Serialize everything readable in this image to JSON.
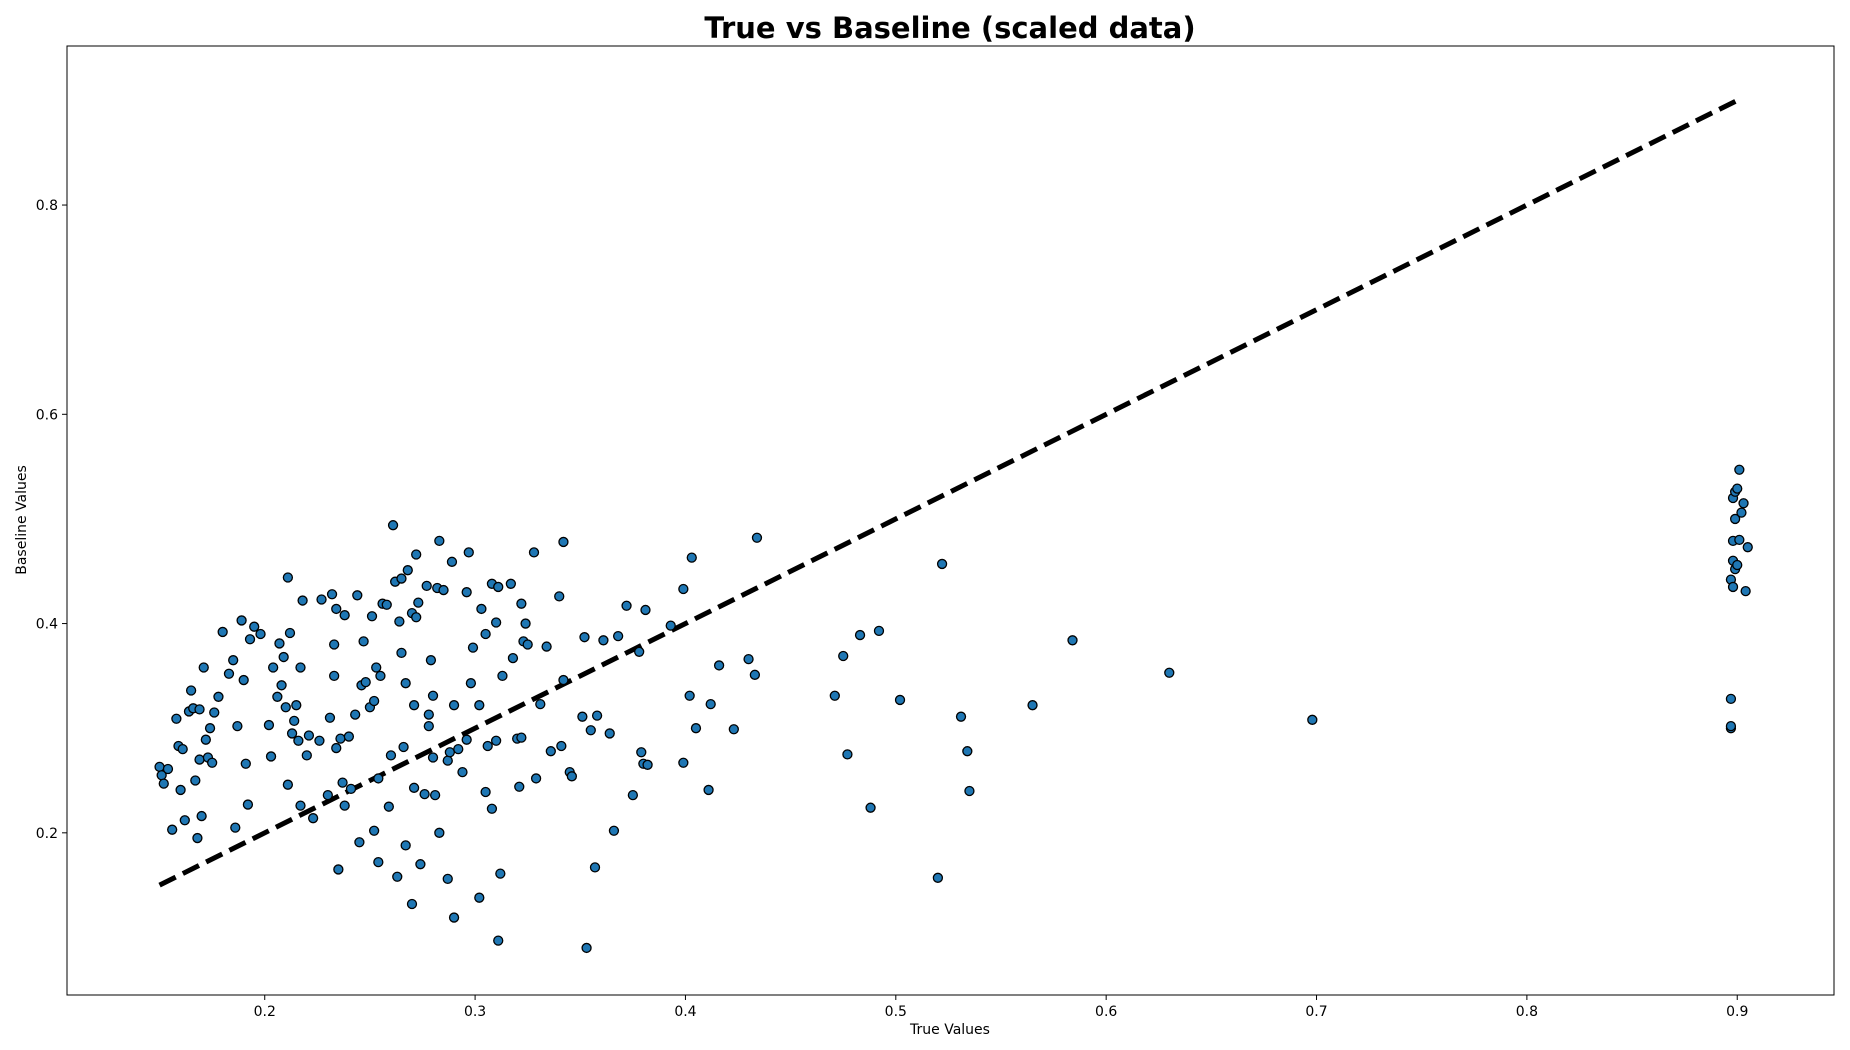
{
  "chart_data": {
    "type": "scatter",
    "title": "True vs Baseline (scaled data)",
    "xlabel": "True Values",
    "ylabel": "Baseline Values",
    "xlim": [
      0.106,
      0.946
    ],
    "ylim": [
      0.045,
      0.952
    ],
    "xticks": [
      0.2,
      0.3,
      0.4,
      0.5,
      0.6,
      0.7,
      0.8,
      0.9
    ],
    "xtick_labels": [
      "0.2",
      "0.3",
      "0.4",
      "0.5",
      "0.6",
      "0.7",
      "0.8",
      "0.9"
    ],
    "yticks": [
      0.2,
      0.4,
      0.6,
      0.8
    ],
    "ytick_labels": [
      "0.2",
      "0.4",
      "0.6",
      "0.8"
    ],
    "grid": false,
    "legend": false,
    "colors": {
      "marker_fill": "#1f77b4",
      "marker_edge": "#000000",
      "reference_line": "#000000"
    },
    "reference_line": {
      "style": "dashed",
      "x": [
        0.15,
        0.9
      ],
      "y": [
        0.15,
        0.9
      ]
    },
    "series": [
      {
        "points": [
          [
            0.15,
            0.263
          ],
          [
            0.151,
            0.255
          ],
          [
            0.152,
            0.247
          ],
          [
            0.154,
            0.261
          ],
          [
            0.156,
            0.203
          ],
          [
            0.158,
            0.309
          ],
          [
            0.159,
            0.283
          ],
          [
            0.16,
            0.241
          ],
          [
            0.161,
            0.28
          ],
          [
            0.162,
            0.212
          ],
          [
            0.164,
            0.316
          ],
          [
            0.165,
            0.336
          ],
          [
            0.166,
            0.319
          ],
          [
            0.167,
            0.25
          ],
          [
            0.168,
            0.195
          ],
          [
            0.169,
            0.27
          ],
          [
            0.169,
            0.318
          ],
          [
            0.17,
            0.216
          ],
          [
            0.171,
            0.358
          ],
          [
            0.172,
            0.289
          ],
          [
            0.173,
            0.272
          ],
          [
            0.174,
            0.3
          ],
          [
            0.175,
            0.267
          ],
          [
            0.176,
            0.315
          ],
          [
            0.178,
            0.33
          ],
          [
            0.18,
            0.392
          ],
          [
            0.183,
            0.352
          ],
          [
            0.185,
            0.365
          ],
          [
            0.186,
            0.205
          ],
          [
            0.187,
            0.302
          ],
          [
            0.189,
            0.403
          ],
          [
            0.19,
            0.346
          ],
          [
            0.191,
            0.266
          ],
          [
            0.192,
            0.227
          ],
          [
            0.193,
            0.385
          ],
          [
            0.195,
            0.397
          ],
          [
            0.198,
            0.39
          ],
          [
            0.202,
            0.303
          ],
          [
            0.203,
            0.273
          ],
          [
            0.204,
            0.358
          ],
          [
            0.206,
            0.33
          ],
          [
            0.207,
            0.381
          ],
          [
            0.208,
            0.341
          ],
          [
            0.209,
            0.368
          ],
          [
            0.21,
            0.32
          ],
          [
            0.211,
            0.246
          ],
          [
            0.211,
            0.444
          ],
          [
            0.212,
            0.391
          ],
          [
            0.213,
            0.295
          ],
          [
            0.214,
            0.307
          ],
          [
            0.215,
            0.322
          ],
          [
            0.216,
            0.288
          ],
          [
            0.217,
            0.358
          ],
          [
            0.217,
            0.226
          ],
          [
            0.218,
            0.422
          ],
          [
            0.22,
            0.274
          ],
          [
            0.221,
            0.293
          ],
          [
            0.223,
            0.214
          ],
          [
            0.226,
            0.288
          ],
          [
            0.227,
            0.423
          ],
          [
            0.23,
            0.236
          ],
          [
            0.231,
            0.31
          ],
          [
            0.232,
            0.428
          ],
          [
            0.233,
            0.38
          ],
          [
            0.233,
            0.35
          ],
          [
            0.234,
            0.281
          ],
          [
            0.234,
            0.414
          ],
          [
            0.235,
            0.165
          ],
          [
            0.236,
            0.29
          ],
          [
            0.237,
            0.248
          ],
          [
            0.238,
            0.226
          ],
          [
            0.238,
            0.408
          ],
          [
            0.24,
            0.292
          ],
          [
            0.241,
            0.242
          ],
          [
            0.243,
            0.313
          ],
          [
            0.244,
            0.427
          ],
          [
            0.245,
            0.191
          ],
          [
            0.246,
            0.341
          ],
          [
            0.247,
            0.383
          ],
          [
            0.248,
            0.344
          ],
          [
            0.25,
            0.32
          ],
          [
            0.251,
            0.407
          ],
          [
            0.252,
            0.326
          ],
          [
            0.252,
            0.202
          ],
          [
            0.253,
            0.358
          ],
          [
            0.254,
            0.252
          ],
          [
            0.254,
            0.172
          ],
          [
            0.255,
            0.35
          ],
          [
            0.256,
            0.419
          ],
          [
            0.258,
            0.418
          ],
          [
            0.259,
            0.225
          ],
          [
            0.26,
            0.274
          ],
          [
            0.261,
            0.494
          ],
          [
            0.262,
            0.44
          ],
          [
            0.263,
            0.158
          ],
          [
            0.264,
            0.402
          ],
          [
            0.265,
            0.443
          ],
          [
            0.265,
            0.372
          ],
          [
            0.266,
            0.282
          ],
          [
            0.267,
            0.343
          ],
          [
            0.267,
            0.188
          ],
          [
            0.268,
            0.451
          ],
          [
            0.27,
            0.41
          ],
          [
            0.27,
            0.132
          ],
          [
            0.271,
            0.322
          ],
          [
            0.271,
            0.243
          ],
          [
            0.272,
            0.406
          ],
          [
            0.272,
            0.466
          ],
          [
            0.273,
            0.42
          ],
          [
            0.274,
            0.17
          ],
          [
            0.276,
            0.237
          ],
          [
            0.277,
            0.436
          ],
          [
            0.278,
            0.313
          ],
          [
            0.278,
            0.302
          ],
          [
            0.279,
            0.365
          ],
          [
            0.28,
            0.331
          ],
          [
            0.28,
            0.272
          ],
          [
            0.281,
            0.236
          ],
          [
            0.282,
            0.434
          ],
          [
            0.283,
            0.479
          ],
          [
            0.283,
            0.2
          ],
          [
            0.285,
            0.432
          ],
          [
            0.287,
            0.156
          ],
          [
            0.287,
            0.269
          ],
          [
            0.288,
            0.277
          ],
          [
            0.289,
            0.459
          ],
          [
            0.29,
            0.322
          ],
          [
            0.29,
            0.119
          ],
          [
            0.292,
            0.28
          ],
          [
            0.294,
            0.258
          ],
          [
            0.296,
            0.43
          ],
          [
            0.296,
            0.289
          ],
          [
            0.297,
            0.468
          ],
          [
            0.298,
            0.343
          ],
          [
            0.299,
            0.377
          ],
          [
            0.302,
            0.138
          ],
          [
            0.302,
            0.322
          ],
          [
            0.303,
            0.414
          ],
          [
            0.305,
            0.239
          ],
          [
            0.305,
            0.39
          ],
          [
            0.306,
            0.283
          ],
          [
            0.308,
            0.223
          ],
          [
            0.308,
            0.438
          ],
          [
            0.31,
            0.288
          ],
          [
            0.31,
            0.401
          ],
          [
            0.311,
            0.435
          ],
          [
            0.311,
            0.097
          ],
          [
            0.312,
            0.161
          ],
          [
            0.313,
            0.35
          ],
          [
            0.317,
            0.438
          ],
          [
            0.318,
            0.367
          ],
          [
            0.32,
            0.29
          ],
          [
            0.321,
            0.244
          ],
          [
            0.322,
            0.291
          ],
          [
            0.322,
            0.419
          ],
          [
            0.323,
            0.383
          ],
          [
            0.324,
            0.4
          ],
          [
            0.325,
            0.38
          ],
          [
            0.328,
            0.468
          ],
          [
            0.329,
            0.252
          ],
          [
            0.331,
            0.323
          ],
          [
            0.334,
            0.378
          ],
          [
            0.336,
            0.278
          ],
          [
            0.34,
            0.426
          ],
          [
            0.341,
            0.283
          ],
          [
            0.342,
            0.346
          ],
          [
            0.342,
            0.478
          ],
          [
            0.345,
            0.258
          ],
          [
            0.346,
            0.254
          ],
          [
            0.351,
            0.311
          ],
          [
            0.352,
            0.387
          ],
          [
            0.353,
            0.09
          ],
          [
            0.355,
            0.298
          ],
          [
            0.357,
            0.167
          ],
          [
            0.358,
            0.312
          ],
          [
            0.361,
            0.384
          ],
          [
            0.364,
            0.295
          ],
          [
            0.366,
            0.202
          ],
          [
            0.368,
            0.388
          ],
          [
            0.372,
            0.417
          ],
          [
            0.375,
            0.236
          ],
          [
            0.378,
            0.373
          ],
          [
            0.379,
            0.277
          ],
          [
            0.38,
            0.266
          ],
          [
            0.381,
            0.413
          ],
          [
            0.382,
            0.265
          ],
          [
            0.393,
            0.398
          ],
          [
            0.399,
            0.267
          ],
          [
            0.399,
            0.433
          ],
          [
            0.402,
            0.331
          ],
          [
            0.403,
            0.463
          ],
          [
            0.405,
            0.3
          ],
          [
            0.411,
            0.241
          ],
          [
            0.412,
            0.323
          ],
          [
            0.416,
            0.36
          ],
          [
            0.423,
            0.299
          ],
          [
            0.43,
            0.366
          ],
          [
            0.433,
            0.351
          ],
          [
            0.434,
            0.482
          ],
          [
            0.471,
            0.331
          ],
          [
            0.475,
            0.369
          ],
          [
            0.477,
            0.275
          ],
          [
            0.483,
            0.389
          ],
          [
            0.488,
            0.224
          ],
          [
            0.492,
            0.393
          ],
          [
            0.502,
            0.327
          ],
          [
            0.52,
            0.157
          ],
          [
            0.522,
            0.457
          ],
          [
            0.531,
            0.311
          ],
          [
            0.534,
            0.278
          ],
          [
            0.535,
            0.24
          ],
          [
            0.565,
            0.322
          ],
          [
            0.584,
            0.384
          ],
          [
            0.63,
            0.353
          ],
          [
            0.698,
            0.308
          ],
          [
            0.897,
            0.3
          ],
          [
            0.897,
            0.302
          ],
          [
            0.897,
            0.328
          ],
          [
            0.897,
            0.442
          ],
          [
            0.898,
            0.435
          ],
          [
            0.898,
            0.46
          ],
          [
            0.898,
            0.479
          ],
          [
            0.898,
            0.52
          ],
          [
            0.899,
            0.526
          ],
          [
            0.899,
            0.5
          ],
          [
            0.899,
            0.452
          ],
          [
            0.9,
            0.456
          ],
          [
            0.9,
            0.529
          ],
          [
            0.901,
            0.48
          ],
          [
            0.901,
            0.547
          ],
          [
            0.902,
            0.506
          ],
          [
            0.903,
            0.515
          ],
          [
            0.904,
            0.431
          ],
          [
            0.905,
            0.473
          ]
        ]
      }
    ]
  }
}
